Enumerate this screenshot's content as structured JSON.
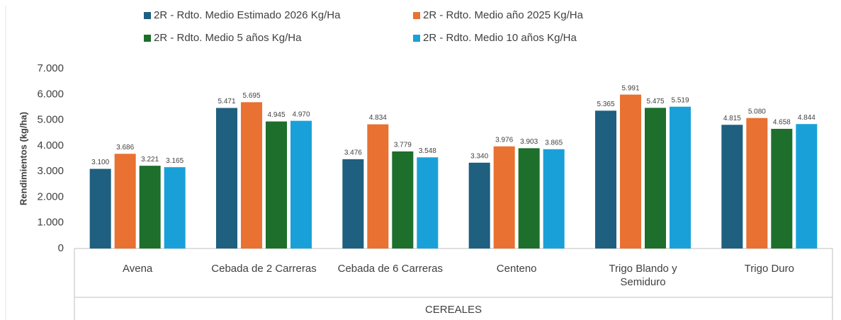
{
  "chart_data": {
    "type": "bar",
    "y_label": "Rendimientos (kg/ha)",
    "group_label": "CEREALES",
    "categories": [
      "Avena",
      "Cebada de 2 Carreras",
      "Cebada de 6 Carreras",
      "Centeno",
      "Trigo Blando y Semiduro",
      "Trigo Duro"
    ],
    "series": [
      {
        "name": "2R - Rdto. Medio Estimado 2026 Kg/Ha",
        "color": "#1f5f80",
        "values": [
          3100,
          5471,
          3476,
          3340,
          5365,
          4815
        ],
        "value_labels": [
          "3.100",
          "5.471",
          "3.476",
          "3.340",
          "5.365",
          "4.815"
        ]
      },
      {
        "name": "2R - Rdto. Medio año 2025 Kg/Ha",
        "color": "#e97132",
        "values": [
          3686,
          5695,
          4834,
          3976,
          5991,
          5080
        ],
        "value_labels": [
          "3.686",
          "5.695",
          "4.834",
          "3.976",
          "5.991",
          "5.080"
        ]
      },
      {
        "name": "2R - Rdto. Medio 5 años Kg/Ha",
        "color": "#1d6f2b",
        "values": [
          3221,
          4945,
          3779,
          3903,
          5475,
          4658
        ],
        "value_labels": [
          "3.221",
          "4.945",
          "3.779",
          "3.903",
          "5.475",
          "4.658"
        ]
      },
      {
        "name": "2R - Rdto. Medio 10 años Kg/Ha",
        "color": "#1aa0d8",
        "values": [
          3165,
          4970,
          3548,
          3865,
          5519,
          4844
        ],
        "value_labels": [
          "3.165",
          "4.970",
          "3.548",
          "3.865",
          "5.519",
          "4.844"
        ]
      }
    ],
    "ylim": [
      0,
      7000
    ],
    "yticks": [
      0,
      {
        "value": 1000,
        "label": "1.000"
      },
      {
        "value": 2000,
        "label": "2.000"
      },
      {
        "value": 3000,
        "label": "3.000"
      },
      {
        "value": 4000,
        "label": "4.000"
      },
      {
        "value": 5000,
        "label": "5.000"
      },
      {
        "value": 6000,
        "label": "6.000"
      },
      {
        "value": 7000,
        "label": "7.000"
      }
    ],
    "grid": false,
    "legend_position": "top"
  }
}
